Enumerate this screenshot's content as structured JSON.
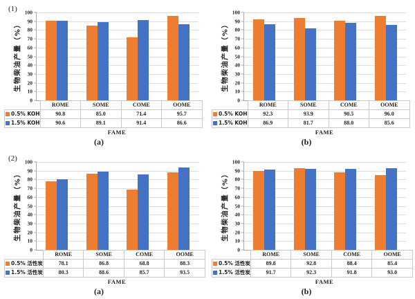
{
  "figure_title": "",
  "colors": {
    "series_orange": "#ED7D31",
    "series_blue": "#4472C4",
    "gridline": "#DFDFDF",
    "axis_line": "#A8A8A8",
    "table_border": "#C9C9C9"
  },
  "chart_data": [
    {
      "id": "1a",
      "type": "bar",
      "row_marker": "(1)",
      "caption": "(a)",
      "ylabel": "生物柴油产量（%）",
      "xlabel": "FAME",
      "ylim": [
        0,
        100
      ],
      "yticks": [
        0,
        10,
        20,
        30,
        40,
        50,
        60,
        70,
        80,
        90,
        100
      ],
      "grid": true,
      "legend_position": "table-left",
      "categories": [
        "ROME",
        "SOME",
        "COME",
        "OOME"
      ],
      "series": [
        {
          "name": "0.5% KOH",
          "color": "#ED7D31",
          "values": [
            "90.8",
            "85.0",
            "71.4",
            "95.7"
          ]
        },
        {
          "name": "1.5% KOH",
          "color": "#4472C4",
          "values": [
            "90.6",
            "89.1",
            "91.4",
            "86.6"
          ]
        }
      ]
    },
    {
      "id": "1b",
      "type": "bar",
      "row_marker": "",
      "caption": "(b)",
      "ylabel": "生物柴油产量（%）",
      "xlabel": "FAME",
      "ylim": [
        0,
        100
      ],
      "yticks": [
        0,
        10,
        20,
        30,
        40,
        50,
        60,
        70,
        80,
        90,
        100
      ],
      "grid": true,
      "legend_position": "table-left",
      "categories": [
        "ROME",
        "SOME",
        "COME",
        "OOME"
      ],
      "series": [
        {
          "name": "0.5% KOH",
          "color": "#ED7D31",
          "values": [
            "92.3",
            "93.9",
            "90.5",
            "96.0"
          ]
        },
        {
          "name": "1.5% KOH",
          "color": "#4472C4",
          "values": [
            "86.9",
            "81.7",
            "88.0",
            "85.6"
          ]
        }
      ]
    },
    {
      "id": "2a",
      "type": "bar",
      "row_marker": "(2)",
      "caption": "(a)",
      "ylabel": "生物柴油产量（%）",
      "xlabel": "FAME",
      "ylim": [
        0,
        100
      ],
      "yticks": [
        0,
        10,
        20,
        30,
        40,
        50,
        60,
        70,
        80,
        90,
        100
      ],
      "grid": true,
      "legend_position": "table-left",
      "categories": [
        "ROME",
        "SOME",
        "COME",
        "OOME"
      ],
      "series": [
        {
          "name": "0.5% 活性炭",
          "color": "#ED7D31",
          "values": [
            "78.1",
            "86.8",
            "68.8",
            "88.3"
          ]
        },
        {
          "name": "1.5% 活性炭",
          "color": "#4472C4",
          "values": [
            "80.3",
            "88.6",
            "85.7",
            "93.5"
          ]
        }
      ]
    },
    {
      "id": "2b",
      "type": "bar",
      "row_marker": "",
      "caption": "(b)",
      "ylabel": "生物柴油产量（%）",
      "xlabel": "FAME",
      "ylim": [
        0,
        100
      ],
      "yticks": [
        0,
        10,
        20,
        30,
        40,
        50,
        60,
        70,
        80,
        90,
        100
      ],
      "grid": true,
      "legend_position": "table-left",
      "categories": [
        "ROME",
        "SOME",
        "COME",
        "OOME"
      ],
      "series": [
        {
          "name": "0.5% 活性炭",
          "color": "#ED7D31",
          "values": [
            "89.8",
            "92.8",
            "88.4",
            "85.4"
          ]
        },
        {
          "name": "1.5% 活性炭",
          "color": "#4472C4",
          "values": [
            "91.7",
            "92.3",
            "91.8",
            "93.0"
          ]
        }
      ]
    }
  ]
}
